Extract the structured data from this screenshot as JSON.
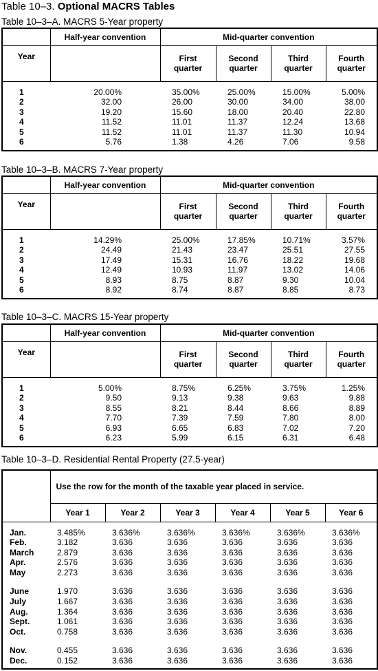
{
  "header": {
    "label": "Table 10–3.",
    "title": "Optional MACRS Tables"
  },
  "tables": [
    {
      "caption": "Table 10–3–A. MACRS 5-Year property",
      "half_year_label": "Half-year convention",
      "mid_quarter_label": "Mid-quarter convention",
      "year_label": "Year",
      "quarter_labels": [
        "First quarter",
        "Second quarter",
        "Third quarter",
        "Fourth quarter"
      ],
      "rows": [
        {
          "year": 1,
          "half_year": "20.00%",
          "quarters": [
            "35.00%",
            "25.00%",
            "15.00%",
            "5.00%"
          ]
        },
        {
          "year": 2,
          "half_year": "32.00",
          "quarters": [
            "26.00",
            "30.00",
            "34.00",
            "38.00"
          ]
        },
        {
          "year": 3,
          "half_year": "19.20",
          "quarters": [
            "15.60",
            "18.00",
            "20.40",
            "22.80"
          ]
        },
        {
          "year": 4,
          "half_year": "11.52",
          "quarters": [
            "11.01",
            "11.37",
            "12.24",
            "13.68"
          ]
        },
        {
          "year": 5,
          "half_year": "11.52",
          "quarters": [
            "11.01",
            "11.37",
            "11.30",
            "10.94"
          ]
        },
        {
          "year": 6,
          "half_year": "5.76",
          "quarters": [
            "1.38",
            "4.26",
            "7.06",
            "9.58"
          ]
        }
      ]
    },
    {
      "caption": "Table 10–3–B. MACRS 7-Year property",
      "half_year_label": "Half-year convention",
      "mid_quarter_label": "Mid-quarter convention",
      "year_label": "Year",
      "quarter_labels": [
        "First quarter",
        "Second quarter",
        "Third quarter",
        "Fourth quarter"
      ],
      "rows": [
        {
          "year": 1,
          "half_year": "14.29%",
          "quarters": [
            "25.00%",
            "17.85%",
            "10.71%",
            "3.57%"
          ]
        },
        {
          "year": 2,
          "half_year": "24.49",
          "quarters": [
            "21.43",
            "23.47",
            "25.51",
            "27.55"
          ]
        },
        {
          "year": 3,
          "half_year": "17.49",
          "quarters": [
            "15.31",
            "16.76",
            "18.22",
            "19.68"
          ]
        },
        {
          "year": 4,
          "half_year": "12.49",
          "quarters": [
            "10.93",
            "11.97",
            "13.02",
            "14.06"
          ]
        },
        {
          "year": 5,
          "half_year": "8.93",
          "quarters": [
            "8.75",
            "8.87",
            "9.30",
            "10.04"
          ]
        },
        {
          "year": 6,
          "half_year": "8.92",
          "quarters": [
            "8.74",
            "8.87",
            "8.85",
            "8.73"
          ]
        }
      ]
    },
    {
      "caption": "Table 10–3–C. MACRS 15-Year property",
      "half_year_label": "Half-year convention",
      "mid_quarter_label": "Mid-quarter convention",
      "year_label": "Year",
      "quarter_labels": [
        "First quarter",
        "Second quarter",
        "Third quarter",
        "Fourth quarter"
      ],
      "rows": [
        {
          "year": 1,
          "half_year": "5.00%",
          "quarters": [
            "8.75%",
            "6.25%",
            "3.75%",
            "1.25%"
          ]
        },
        {
          "year": 2,
          "half_year": "9.50",
          "quarters": [
            "9.13",
            "9.38",
            "9.63",
            "9.88"
          ]
        },
        {
          "year": 3,
          "half_year": "8.55",
          "quarters": [
            "8.21",
            "8.44",
            "8.66",
            "8.89"
          ]
        },
        {
          "year": 4,
          "half_year": "7.70",
          "quarters": [
            "7.39",
            "7.59",
            "7.80",
            "8.00"
          ]
        },
        {
          "year": 5,
          "half_year": "6.93",
          "quarters": [
            "6.65",
            "6.83",
            "7.02",
            "7.20"
          ]
        },
        {
          "year": 6,
          "half_year": "6.23",
          "quarters": [
            "5.99",
            "6.15",
            "6.31",
            "6.48"
          ]
        }
      ]
    }
  ],
  "rental_table": {
    "caption": "Table 10–3–D. Residential Rental Property (27.5-year)",
    "instruction": "Use the row for the month of the taxable year placed in service.",
    "year_labels": [
      "Year 1",
      "Year 2",
      "Year 3",
      "Year 4",
      "Year 5",
      "Year 6"
    ],
    "row_groups": [
      [
        {
          "month": "Jan.",
          "values": [
            "3.485%",
            "3.636%",
            "3.636%",
            "3.636%",
            "3.636%",
            "3.636%"
          ]
        },
        {
          "month": "Feb.",
          "values": [
            "3.182",
            "3.636",
            "3.636",
            "3.636",
            "3.636",
            "3.636"
          ]
        },
        {
          "month": "March",
          "values": [
            "2.879",
            "3.636",
            "3.636",
            "3.636",
            "3.636",
            "3.636"
          ]
        },
        {
          "month": "Apr.",
          "values": [
            "2.576",
            "3.636",
            "3.636",
            "3.636",
            "3.636",
            "3.636"
          ]
        },
        {
          "month": "May",
          "values": [
            "2.273",
            "3.636",
            "3.636",
            "3.636",
            "3.636",
            "3.636"
          ]
        }
      ],
      [
        {
          "month": "June",
          "values": [
            "1.970",
            "3.636",
            "3.636",
            "3.636",
            "3.636",
            "3.636"
          ]
        },
        {
          "month": "July",
          "values": [
            "1.667",
            "3.636",
            "3.636",
            "3.636",
            "3.636",
            "3.636"
          ]
        },
        {
          "month": "Aug.",
          "values": [
            "1.364",
            "3.636",
            "3.636",
            "3.636",
            "3.636",
            "3.636"
          ]
        },
        {
          "month": "Sept.",
          "values": [
            "1.061",
            "3.636",
            "3.636",
            "3.636",
            "3.636",
            "3.636"
          ]
        },
        {
          "month": "Oct.",
          "values": [
            "0.758",
            "3.636",
            "3.636",
            "3.636",
            "3.636",
            "3.636"
          ]
        }
      ],
      [
        {
          "month": "Nov.",
          "values": [
            "0.455",
            "3.636",
            "3.636",
            "3.636",
            "3.636",
            "3.636"
          ]
        },
        {
          "month": "Dec.",
          "values": [
            "0.152",
            "3.636",
            "3.636",
            "3.636",
            "3.636",
            "3.636"
          ]
        }
      ]
    ]
  }
}
